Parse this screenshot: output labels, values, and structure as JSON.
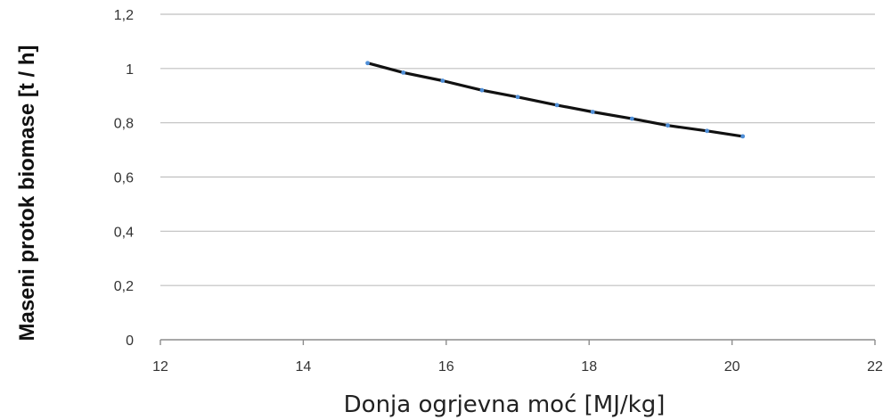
{
  "chart_data": {
    "type": "line",
    "title": "",
    "xlabel": "Donja ogrjevna moć [MJ/kg]",
    "ylabel": "Maseni protok biomase [t / h]",
    "xlim": [
      12,
      22
    ],
    "ylim": [
      0,
      1.2
    ],
    "x_ticks": [
      "12",
      "14",
      "16",
      "18",
      "20",
      "22"
    ],
    "y_ticks": [
      "0",
      "0,2",
      "0,4",
      "0,6",
      "0,8",
      "1",
      "1,2"
    ],
    "grid": "horizontal",
    "legend": "none",
    "series": [
      {
        "x": [
          14.9,
          15.4,
          15.95,
          16.5,
          17.0,
          17.55,
          18.05,
          18.6,
          19.1,
          19.65,
          20.15
        ],
        "y": [
          1.02,
          0.985,
          0.955,
          0.92,
          0.895,
          0.865,
          0.84,
          0.815,
          0.79,
          0.77,
          0.75
        ],
        "line_color": "#111111",
        "marker_color": "#4f8fd8"
      }
    ],
    "colors": {
      "grid": "#bfbfbf",
      "axis": "#8c8c8c",
      "text": "#333333"
    }
  }
}
